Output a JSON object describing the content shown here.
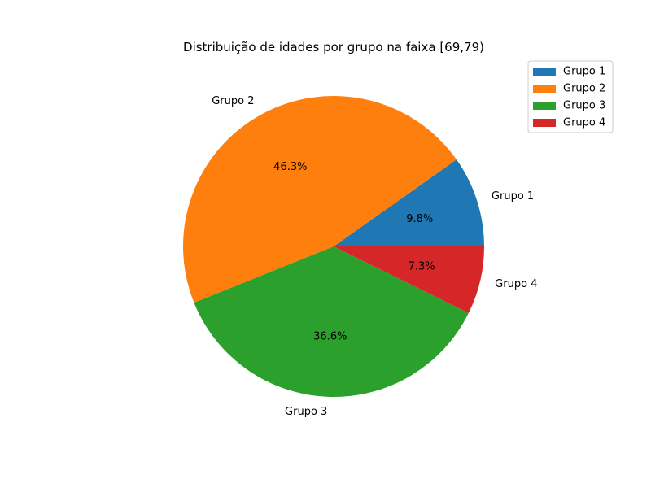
{
  "chart_data": {
    "type": "pie",
    "title": "Distribuição de idades por grupo na faixa [69,79)",
    "categories": [
      "Grupo 1",
      "Grupo 2",
      "Grupo 3",
      "Grupo 4"
    ],
    "values": [
      9.8,
      46.3,
      36.6,
      7.3
    ],
    "value_labels": [
      "9.8%",
      "46.3%",
      "36.6%",
      "7.3%"
    ],
    "colors": [
      "#1f77b4",
      "#ff7f0e",
      "#2ca02c",
      "#d62728"
    ],
    "start_angle_deg": 0,
    "direction": "counterclockwise",
    "legend": {
      "placement": "top-right",
      "entries": [
        "Grupo 1",
        "Grupo 2",
        "Grupo 3",
        "Grupo 4"
      ]
    }
  }
}
